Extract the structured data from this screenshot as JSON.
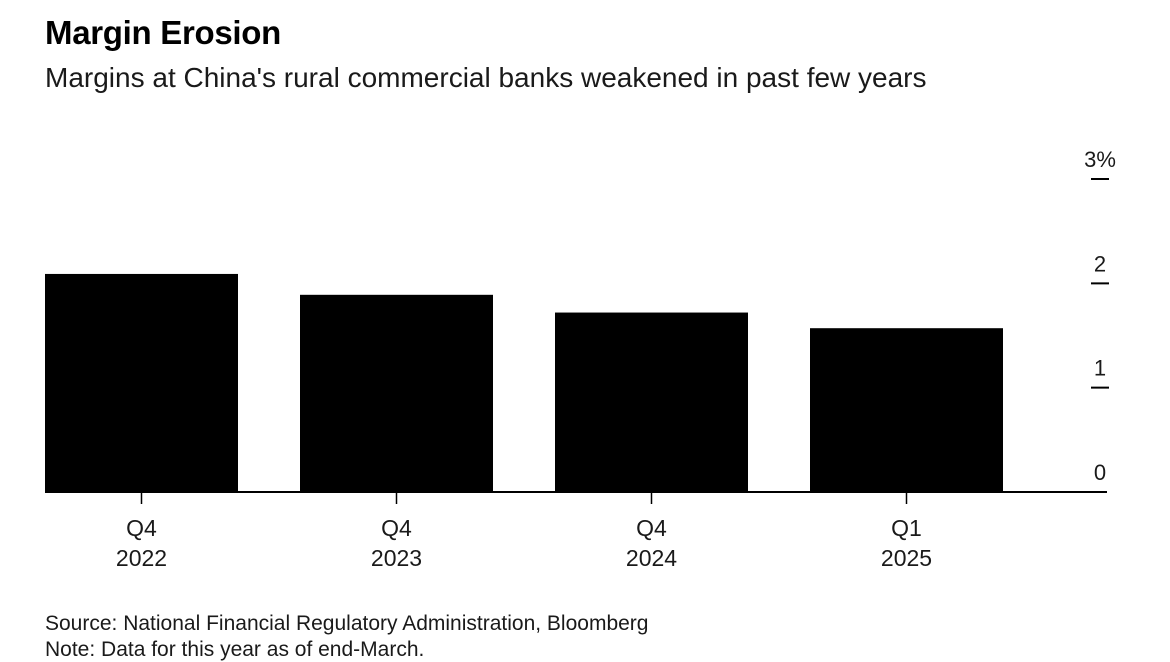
{
  "chart_data": {
    "type": "bar",
    "title": "Margin Erosion",
    "subtitle": "Margins at China's rural commercial banks weakened in past few years",
    "categories": [
      {
        "line1": "Q4",
        "line2": "2022"
      },
      {
        "line1": "Q4",
        "line2": "2023"
      },
      {
        "line1": "Q4",
        "line2": "2024"
      },
      {
        "line1": "Q1",
        "line2": "2025"
      }
    ],
    "values": [
      2.09,
      1.89,
      1.72,
      1.57
    ],
    "ylim": [
      0,
      3
    ],
    "yticks": [
      {
        "value": 0,
        "label": "0"
      },
      {
        "value": 1,
        "label": "1"
      },
      {
        "value": 2,
        "label": "2"
      },
      {
        "value": 3,
        "label": "3%"
      }
    ],
    "y_axis_side": "right",
    "bar_color": "#000000",
    "xlabel": "",
    "ylabel": ""
  },
  "footer": {
    "source": "Source: National Financial Regulatory Administration, Bloomberg",
    "note": "Note: Data for this year as of end-March."
  }
}
